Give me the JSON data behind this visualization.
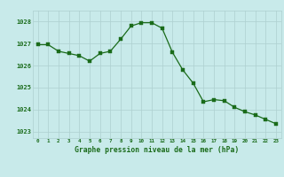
{
  "x": [
    0,
    1,
    2,
    3,
    4,
    5,
    6,
    7,
    8,
    9,
    10,
    11,
    12,
    13,
    14,
    15,
    16,
    17,
    18,
    19,
    20,
    21,
    22,
    23
  ],
  "y": [
    1026.95,
    1026.95,
    1026.65,
    1026.55,
    1026.45,
    1026.2,
    1026.55,
    1026.65,
    1027.2,
    1027.8,
    1027.95,
    1027.95,
    1027.7,
    1026.6,
    1025.8,
    1025.2,
    1024.35,
    1024.45,
    1024.4,
    1024.1,
    1023.9,
    1023.75,
    1023.55,
    1023.35
  ],
  "line_color": "#1a6b1a",
  "marker_color": "#1a6b1a",
  "bg_color": "#c8eaea",
  "grid_color": "#aed0d0",
  "xlabel": "Graphe pression niveau de la mer (hPa)",
  "xlabel_color": "#1a6b1a",
  "tick_color": "#1a6b1a",
  "ytick_labels": [
    1023,
    1024,
    1025,
    1026,
    1027,
    1028
  ],
  "ylim": [
    1022.7,
    1028.5
  ],
  "xlim": [
    -0.5,
    23.5
  ],
  "xtick_labels": [
    "0",
    "1",
    "2",
    "3",
    "4",
    "5",
    "6",
    "7",
    "8",
    "9",
    "10",
    "11",
    "12",
    "13",
    "14",
    "15",
    "16",
    "17",
    "18",
    "19",
    "20",
    "21",
    "22",
    "23"
  ]
}
